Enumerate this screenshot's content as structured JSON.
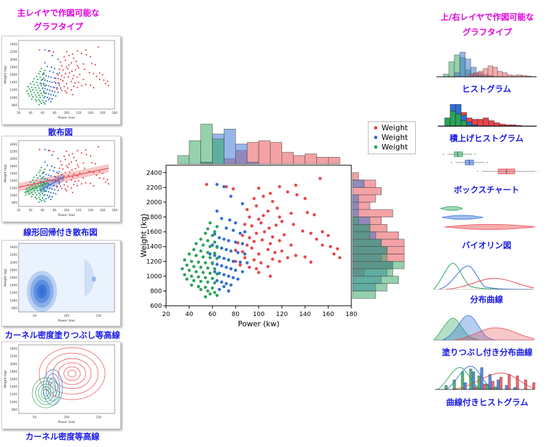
{
  "left_header": {
    "line1": "主レイヤで作図可能な",
    "line2": "グラフタイプ"
  },
  "right_header": {
    "line1": "上/右レイヤで作図可能な",
    "line2": "グラフタイプ"
  },
  "left_items": [
    {
      "label": "散布図"
    },
    {
      "label": "線形回帰付き散布図"
    },
    {
      "label": "カーネル密度塗りつぶし等高線"
    },
    {
      "label": "カーネル密度等高線"
    }
  ],
  "right_items": [
    {
      "label": "ヒストグラム"
    },
    {
      "label": "積上げヒストグラム"
    },
    {
      "label": "ボックスチャート"
    },
    {
      "label": "バイオリン図"
    },
    {
      "label": "分布曲線"
    },
    {
      "label": "塗りつぶし付き分布曲線"
    },
    {
      "label": "曲線付きヒストグラム"
    }
  ],
  "thumb_axis": {
    "xlabel": "Power (kw)",
    "ylabel": "Weight (kg)",
    "xticks_full": [
      "20",
      "40",
      "60",
      "80",
      "100",
      "120",
      "140",
      "160",
      "180"
    ],
    "xticks_kde": [
      "50",
      "100",
      "150"
    ],
    "yticks": [
      "800",
      "1000",
      "1200",
      "1400",
      "1600",
      "1800",
      "2000",
      "2200",
      "2400"
    ]
  },
  "colors": {
    "red": "#e8464b",
    "blue": "#2f6fd6",
    "green": "#2aa35a",
    "magenta": "#e000e0",
    "label_blue": "#1a1ae6"
  },
  "chart_data": {
    "type": "scatter",
    "xlabel": "Power (kw)",
    "ylabel": "Weight (kg)",
    "xlim": [
      20,
      180
    ],
    "ylim": [
      600,
      2500
    ],
    "xticks": [
      20,
      40,
      60,
      80,
      100,
      120,
      140,
      160,
      180
    ],
    "yticks": [
      600,
      800,
      1000,
      1200,
      1400,
      1600,
      1800,
      2000,
      2200,
      2400
    ],
    "legend_position": "top-right",
    "series": [
      {
        "name": "Weight",
        "color": "#e8464b",
        "points": [
          [
            55,
            2240
          ],
          [
            72,
            2210
          ],
          [
            78,
            2180
          ],
          [
            100,
            2190
          ],
          [
            118,
            2210
          ],
          [
            132,
            2230
          ],
          [
            153,
            2320
          ],
          [
            110,
            2120
          ],
          [
            125,
            2140
          ],
          [
            96,
            2050
          ],
          [
            104,
            2080
          ],
          [
            112,
            2010
          ],
          [
            133,
            2100
          ],
          [
            140,
            2050
          ],
          [
            90,
            1900
          ],
          [
            98,
            1950
          ],
          [
            108,
            1880
          ],
          [
            116,
            1920
          ],
          [
            92,
            1800
          ],
          [
            100,
            1770
          ],
          [
            104,
            1820
          ],
          [
            118,
            1800
          ],
          [
            128,
            1850
          ],
          [
            142,
            1860
          ],
          [
            148,
            1830
          ],
          [
            88,
            1700
          ],
          [
            94,
            1680
          ],
          [
            102,
            1720
          ],
          [
            109,
            1650
          ],
          [
            115,
            1690
          ],
          [
            120,
            1740
          ],
          [
            130,
            1700
          ],
          [
            138,
            1610
          ],
          [
            145,
            1580
          ],
          [
            155,
            1600
          ],
          [
            86,
            1550
          ],
          [
            92,
            1520
          ],
          [
            98,
            1580
          ],
          [
            105,
            1600
          ],
          [
            112,
            1530
          ],
          [
            122,
            1560
          ],
          [
            82,
            1450
          ],
          [
            90,
            1420
          ],
          [
            96,
            1470
          ],
          [
            103,
            1490
          ],
          [
            110,
            1440
          ],
          [
            118,
            1480
          ],
          [
            128,
            1420
          ],
          [
            150,
            1500
          ],
          [
            160,
            1550
          ],
          [
            162,
            1400
          ],
          [
            168,
            1370
          ],
          [
            80,
            1350
          ],
          [
            86,
            1330
          ],
          [
            94,
            1380
          ],
          [
            100,
            1300
          ],
          [
            108,
            1360
          ],
          [
            114,
            1320
          ],
          [
            120,
            1340
          ],
          [
            132,
            1280
          ],
          [
            140,
            1260
          ],
          [
            155,
            1420
          ],
          [
            165,
            1300
          ],
          [
            170,
            1250
          ],
          [
            88,
            1250
          ],
          [
            96,
            1220
          ],
          [
            102,
            1180
          ],
          [
            112,
            1230
          ],
          [
            118,
            1200
          ],
          [
            125,
            1250
          ],
          [
            145,
            1190
          ],
          [
            84,
            1150
          ],
          [
            92,
            1120
          ],
          [
            98,
            1100
          ],
          [
            108,
            1130
          ],
          [
            100,
            1050
          ],
          [
            110,
            1000
          ],
          [
            76,
            1100
          ],
          [
            80,
            1200
          ]
        ]
      },
      {
        "name": "Weight",
        "color": "#2f6fd6",
        "points": [
          [
            64,
            2240
          ],
          [
            70,
            2210
          ],
          [
            76,
            2080
          ],
          [
            86,
            1980
          ],
          [
            64,
            1880
          ],
          [
            68,
            1780
          ],
          [
            75,
            1760
          ],
          [
            80,
            1720
          ],
          [
            72,
            1650
          ],
          [
            78,
            1620
          ],
          [
            84,
            1580
          ],
          [
            88,
            1600
          ],
          [
            62,
            1570
          ],
          [
            66,
            1520
          ],
          [
            70,
            1500
          ],
          [
            74,
            1480
          ],
          [
            80,
            1460
          ],
          [
            86,
            1440
          ],
          [
            60,
            1420
          ],
          [
            64,
            1400
          ],
          [
            68,
            1380
          ],
          [
            72,
            1360
          ],
          [
            76,
            1340
          ],
          [
            82,
            1320
          ],
          [
            88,
            1300
          ],
          [
            58,
            1300
          ],
          [
            62,
            1280
          ],
          [
            66,
            1260
          ],
          [
            70,
            1240
          ],
          [
            74,
            1220
          ],
          [
            78,
            1200
          ],
          [
            84,
            1190
          ],
          [
            90,
            1180
          ],
          [
            60,
            1180
          ],
          [
            64,
            1160
          ],
          [
            68,
            1140
          ],
          [
            72,
            1120
          ],
          [
            76,
            1100
          ],
          [
            80,
            1080
          ],
          [
            86,
            1060
          ],
          [
            62,
            1060
          ],
          [
            66,
            1040
          ],
          [
            70,
            1020
          ],
          [
            74,
            1000
          ],
          [
            78,
            980
          ],
          [
            82,
            960
          ],
          [
            64,
            940
          ],
          [
            68,
            920
          ],
          [
            72,
            900
          ],
          [
            76,
            880
          ],
          [
            70,
            860
          ],
          [
            66,
            820
          ],
          [
            74,
            800
          ]
        ]
      },
      {
        "name": "Weight",
        "color": "#2aa35a",
        "points": [
          [
            58,
            1720
          ],
          [
            64,
            1670
          ],
          [
            56,
            1640
          ],
          [
            62,
            1600
          ],
          [
            54,
            1580
          ],
          [
            60,
            1550
          ],
          [
            50,
            1500
          ],
          [
            56,
            1480
          ],
          [
            62,
            1460
          ],
          [
            46,
            1440
          ],
          [
            52,
            1420
          ],
          [
            58,
            1400
          ],
          [
            64,
            1390
          ],
          [
            44,
            1360
          ],
          [
            50,
            1340
          ],
          [
            56,
            1320
          ],
          [
            62,
            1310
          ],
          [
            40,
            1300
          ],
          [
            46,
            1280
          ],
          [
            52,
            1260
          ],
          [
            58,
            1250
          ],
          [
            64,
            1240
          ],
          [
            36,
            1220
          ],
          [
            42,
            1200
          ],
          [
            48,
            1190
          ],
          [
            54,
            1180
          ],
          [
            60,
            1170
          ],
          [
            38,
            1150
          ],
          [
            44,
            1130
          ],
          [
            50,
            1120
          ],
          [
            56,
            1110
          ],
          [
            62,
            1100
          ],
          [
            34,
            1100
          ],
          [
            40,
            1080
          ],
          [
            46,
            1060
          ],
          [
            52,
            1050
          ],
          [
            58,
            1040
          ],
          [
            64,
            1030
          ],
          [
            36,
            1020
          ],
          [
            42,
            1000
          ],
          [
            48,
            990
          ],
          [
            54,
            980
          ],
          [
            60,
            970
          ],
          [
            38,
            960
          ],
          [
            44,
            940
          ],
          [
            50,
            930
          ],
          [
            56,
            920
          ],
          [
            62,
            910
          ],
          [
            42,
            880
          ],
          [
            48,
            860
          ],
          [
            54,
            850
          ],
          [
            60,
            840
          ],
          [
            50,
            820
          ],
          [
            56,
            800
          ],
          [
            62,
            780
          ],
          [
            58,
            760
          ],
          [
            64,
            740
          ],
          [
            54,
            720
          ]
        ]
      }
    ]
  }
}
